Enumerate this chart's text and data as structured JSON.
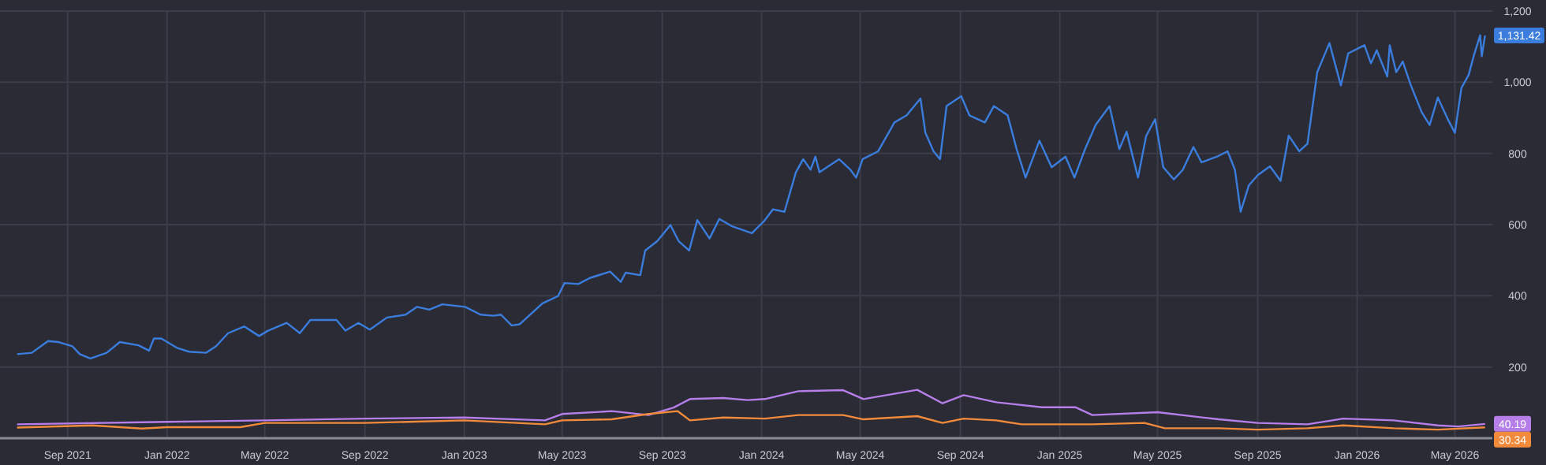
{
  "chart_data": {
    "type": "line",
    "xlim": [
      "2021-06-10",
      "2026-06-16"
    ],
    "ylim": [
      0,
      1200
    ],
    "xticks": [
      {
        "value": "2021-09-01",
        "label": "Sep 2021"
      },
      {
        "value": "2022-01-01",
        "label": "Jan 2022"
      },
      {
        "value": "2022-05-01",
        "label": "May 2022"
      },
      {
        "value": "2022-09-01",
        "label": "Sep 2022"
      },
      {
        "value": "2023-01-01",
        "label": "Jan 2023"
      },
      {
        "value": "2023-05-01",
        "label": "May 2023"
      },
      {
        "value": "2023-09-01",
        "label": "Sep 2023"
      },
      {
        "value": "2024-01-01",
        "label": "Jan 2024"
      },
      {
        "value": "2024-05-01",
        "label": "May 2024"
      },
      {
        "value": "2024-09-01",
        "label": "Sep 2024"
      },
      {
        "value": "2025-01-01",
        "label": "Jan 2025"
      },
      {
        "value": "2025-05-01",
        "label": "May 2025"
      },
      {
        "value": "2025-09-01",
        "label": "Sep 2025"
      },
      {
        "value": "2026-01-01",
        "label": "Jan 2026"
      },
      {
        "value": "2026-05-01",
        "label": "May 2026"
      }
    ],
    "yticks": [
      {
        "value": 0,
        "label": null
      },
      200,
      400,
      600,
      800,
      {
        "value": 1000,
        "label": "1,000"
      },
      {
        "value": 1200,
        "label": "1,200"
      }
    ],
    "grid": true,
    "legend": false,
    "marker": "none",
    "line_style": "solid",
    "series": [
      {
        "color": "#3b7ddd",
        "x": [
          "2021-07-01",
          "2021-07-19",
          "2021-08-08",
          "2021-08-21",
          "2021-09-07",
          "2021-09-16",
          "2021-09-29",
          "2021-10-19",
          "2021-11-04",
          "2021-11-27",
          "2021-12-10",
          "2021-12-16",
          "2021-12-25",
          "2022-01-14",
          "2022-01-28",
          "2022-02-18",
          "2022-03-02",
          "2022-03-17",
          "2022-04-06",
          "2022-04-24",
          "2022-05-05",
          "2022-05-28",
          "2022-06-13",
          "2022-06-26",
          "2022-07-28",
          "2022-08-08",
          "2022-08-24",
          "2022-09-07",
          "2022-09-28",
          "2022-10-21",
          "2022-11-04",
          "2022-11-19",
          "2022-12-05",
          "2023-01-02",
          "2023-01-21",
          "2023-02-06",
          "2023-02-15",
          "2023-02-28",
          "2023-03-10",
          "2023-04-07",
          "2023-04-26",
          "2023-05-04",
          "2023-05-21",
          "2023-06-04",
          "2023-06-29",
          "2023-07-12",
          "2023-07-18",
          "2023-08-05",
          "2023-08-11",
          "2023-08-26",
          "2023-09-11",
          "2023-09-21",
          "2023-10-04",
          "2023-10-14",
          "2023-10-29",
          "2023-11-10",
          "2023-11-25",
          "2023-12-20",
          "2024-01-04",
          "2024-01-15",
          "2024-01-29",
          "2024-02-12",
          "2024-02-21",
          "2024-03-01",
          "2024-03-07",
          "2024-03-12",
          "2024-04-05",
          "2024-04-19",
          "2024-04-26",
          "2024-05-04",
          "2024-05-23",
          "2024-06-12",
          "2024-06-27",
          "2024-07-14",
          "2024-07-20",
          "2024-07-30",
          "2024-08-07",
          "2024-08-15",
          "2024-09-02",
          "2024-09-12",
          "2024-10-01",
          "2024-10-12",
          "2024-10-29",
          "2024-11-09",
          "2024-11-20",
          "2024-12-07",
          "2024-12-22",
          "2025-01-08",
          "2025-01-19",
          "2025-02-01",
          "2025-02-14",
          "2025-03-03",
          "2025-03-15",
          "2025-03-24",
          "2025-04-07",
          "2025-04-17",
          "2025-04-28",
          "2025-05-08",
          "2025-05-21",
          "2025-06-01",
          "2025-06-14",
          "2025-06-24",
          "2025-07-13",
          "2025-07-26",
          "2025-08-04",
          "2025-08-11",
          "2025-08-21",
          "2025-09-01",
          "2025-09-16",
          "2025-09-29",
          "2025-10-09",
          "2025-10-22",
          "2025-11-01",
          "2025-11-13",
          "2025-11-28",
          "2025-12-12",
          "2025-12-21",
          "2026-01-10",
          "2026-01-18",
          "2026-01-25",
          "2026-02-07",
          "2026-02-10",
          "2026-02-18",
          "2026-02-26",
          "2026-03-08",
          "2026-03-21",
          "2026-03-31",
          "2026-04-10",
          "2026-04-23",
          "2026-05-01",
          "2026-05-09",
          "2026-05-18",
          "2026-05-24",
          "2026-06-01",
          "2026-06-03",
          "2026-06-07"
        ],
        "values": [
          236,
          240,
          273,
          270,
          258,
          236,
          224,
          240,
          270,
          261,
          246,
          280,
          280,
          253,
          243,
          240,
          258,
          295,
          314,
          287,
          302,
          324,
          295,
          332,
          332,
          302,
          324,
          305,
          339,
          347,
          369,
          361,
          376,
          369,
          347,
          344,
          347,
          317,
          320,
          379,
          399,
          436,
          433,
          450,
          468,
          439,
          465,
          458,
          527,
          554,
          599,
          554,
          527,
          613,
          561,
          616,
          596,
          576,
          610,
          643,
          636,
          747,
          784,
          754,
          791,
          747,
          784,
          754,
          732,
          784,
          806,
          887,
          907,
          954,
          858,
          806,
          784,
          933,
          961,
          907,
          887,
          933,
          907,
          812,
          732,
          836,
          761,
          791,
          732,
          812,
          880,
          933,
          812,
          861,
          732,
          849,
          896,
          761,
          727,
          754,
          818,
          775,
          791,
          806,
          754,
          636,
          710,
          739,
          764,
          723,
          850,
          806,
          827,
          1028,
          1110,
          991,
          1081,
          1104,
          1053,
          1090,
          1016,
          1104,
          1028,
          1058,
          991,
          917,
          880,
          957,
          893,
          858,
          984,
          1021,
          1073,
          1132,
          1073,
          1131.42
        ]
      },
      {
        "color": "#b57ee8",
        "x": [
          "2021-07-01",
          "2022-01-01",
          "2022-05-01",
          "2022-09-01",
          "2023-01-01",
          "2023-04-10",
          "2023-05-01",
          "2023-07-01",
          "2023-08-15",
          "2023-09-15",
          "2023-10-05",
          "2023-11-15",
          "2023-12-15",
          "2024-01-05",
          "2024-02-15",
          "2024-04-10",
          "2024-05-05",
          "2024-07-10",
          "2024-08-10",
          "2024-09-05",
          "2024-10-15",
          "2024-12-10",
          "2025-01-20",
          "2025-02-10",
          "2025-05-01",
          "2025-07-15",
          "2025-09-01",
          "2025-11-01",
          "2025-12-15",
          "2026-02-15",
          "2026-04-10",
          "2026-05-05",
          "2026-06-07"
        ],
        "values": [
          39,
          46,
          50,
          55,
          58,
          50,
          68,
          76,
          65,
          86,
          110,
          113,
          107,
          110,
          132,
          135,
          110,
          136,
          98,
          121,
          101,
          87,
          87,
          65,
          73,
          53,
          43,
          39,
          55,
          50,
          36,
          33,
          40.19
        ]
      },
      {
        "color": "#f28a3c",
        "x": [
          "2021-07-01",
          "2021-10-01",
          "2021-12-01",
          "2022-01-01",
          "2022-04-01",
          "2022-05-01",
          "2022-09-01",
          "2023-01-01",
          "2023-04-10",
          "2023-05-01",
          "2023-07-01",
          "2023-08-15",
          "2023-09-20",
          "2023-10-05",
          "2023-11-15",
          "2024-01-05",
          "2024-02-15",
          "2024-04-10",
          "2024-05-05",
          "2024-07-10",
          "2024-08-10",
          "2024-09-05",
          "2024-10-15",
          "2024-11-15",
          "2025-02-10",
          "2025-04-15",
          "2025-05-10",
          "2025-07-15",
          "2025-09-01",
          "2025-11-01",
          "2025-12-15",
          "2026-02-15",
          "2026-04-10",
          "2026-06-07"
        ],
        "values": [
          30,
          36,
          27,
          31,
          31,
          43,
          43,
          50,
          39,
          50,
          53,
          68,
          76,
          50,
          58,
          55,
          65,
          65,
          53,
          62,
          43,
          55,
          50,
          39,
          39,
          43,
          28,
          28,
          24,
          28,
          36,
          28,
          24,
          30.34
        ]
      }
    ],
    "annotations": [
      {
        "text": "1,131.42",
        "x": "2026-06-07",
        "y": 1131.42
      },
      {
        "text": "40.19",
        "x": "2026-06-07",
        "y": 40.19
      },
      {
        "text": "30.34",
        "x": "2026-06-07",
        "y": 30.34
      }
    ]
  }
}
